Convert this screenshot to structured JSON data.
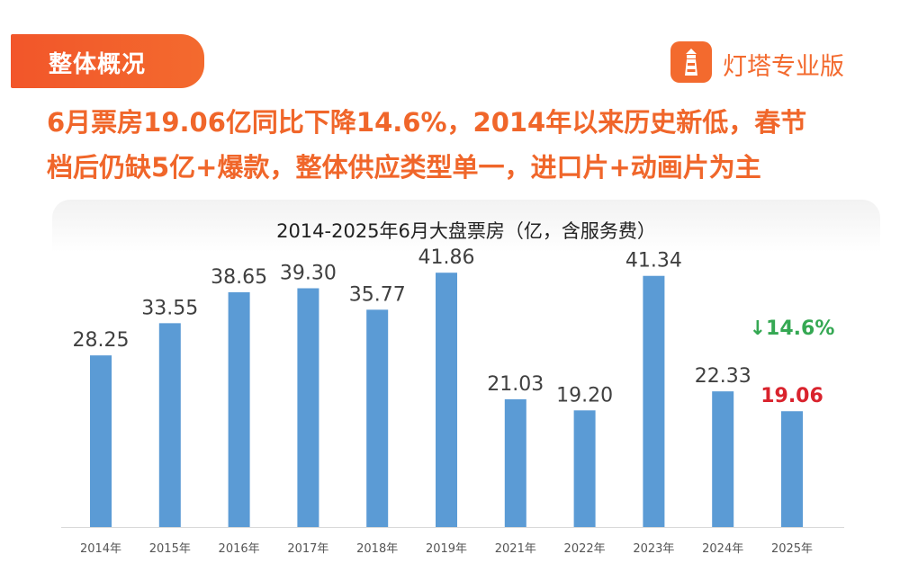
{
  "section_tag": "整体概况",
  "brand": {
    "name": "灯塔专业版",
    "color": "#f36a2e",
    "logo_icon": "lighthouse-icon"
  },
  "headline": {
    "line1": "6月票房19.06亿同比下降14.6%，2014年以来历史新低，春节",
    "line2": "档后仍缺5亿+爆款，整体供应类型单一，进口片+动画片为主"
  },
  "colors": {
    "accent": "#f36a2e",
    "bar": "#5b9bd5",
    "highlight_value": "#d9232d",
    "decline": "#35a853"
  },
  "chart_data": {
    "type": "bar",
    "title": "2014-2025年6月大盘票房（亿，含服务费）",
    "xlabel": "",
    "ylabel": "",
    "categories": [
      "2014年",
      "2015年",
      "2016年",
      "2017年",
      "2018年",
      "2019年",
      "2021年",
      "2022年",
      "2023年",
      "2024年",
      "2025年"
    ],
    "values": [
      28.25,
      33.55,
      38.65,
      39.3,
      35.77,
      41.86,
      21.03,
      19.2,
      41.34,
      22.33,
      19.06
    ],
    "value_labels": [
      "28.25",
      "33.55",
      "38.65",
      "39.30",
      "35.77",
      "41.86",
      "21.03",
      "19.20",
      "41.34",
      "22.33",
      "19.06"
    ],
    "highlight_category": "2025年",
    "change_annotation": "↓14.6%",
    "ylim": [
      0,
      45
    ],
    "grid": false,
    "legend": "none"
  }
}
